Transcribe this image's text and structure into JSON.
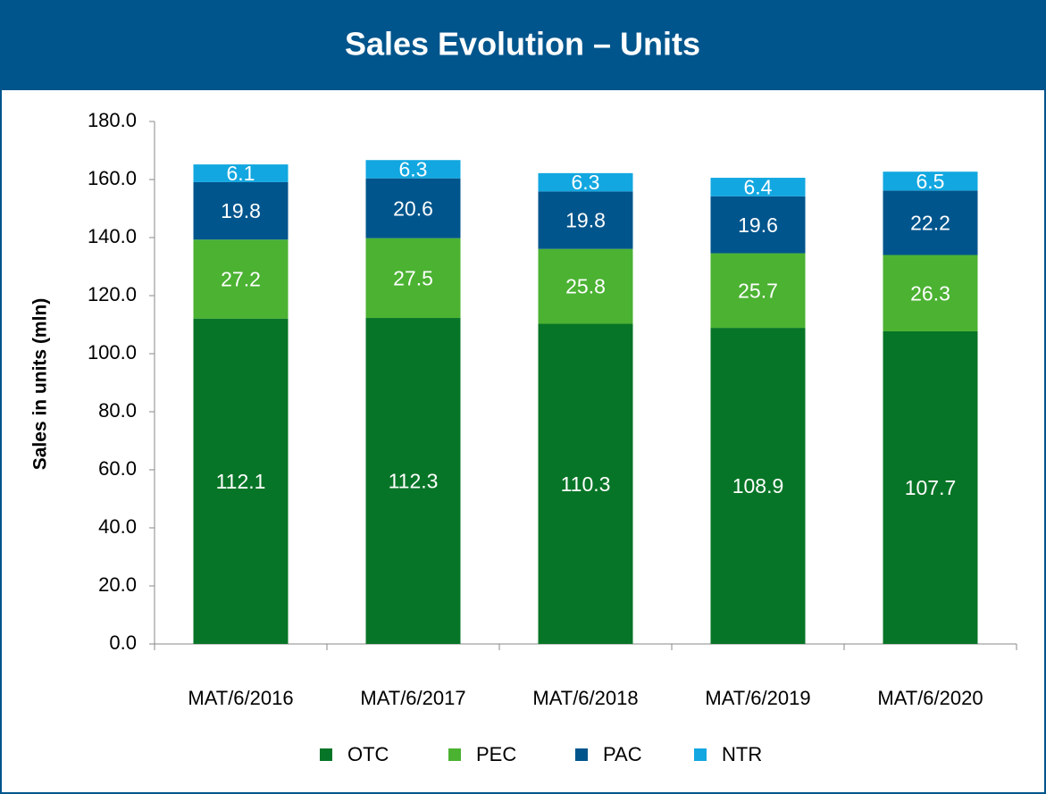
{
  "chart_data": {
    "type": "stacked_bar",
    "title": "Sales Evolution – Units",
    "y_label": "Sales in units (mln)",
    "categories": [
      "MAT/6/2016",
      "MAT/6/2017",
      "MAT/6/2018",
      "MAT/6/2019",
      "MAT/6/2020"
    ],
    "series": [
      {
        "name": "OTC",
        "color": "#077527",
        "values": [
          112.1,
          112.3,
          110.3,
          108.9,
          107.7
        ]
      },
      {
        "name": "PEC",
        "color": "#4bb232",
        "values": [
          27.2,
          27.5,
          25.8,
          25.7,
          26.3
        ]
      },
      {
        "name": "PAC",
        "color": "#00558c",
        "values": [
          19.8,
          20.6,
          19.8,
          19.6,
          22.2
        ]
      },
      {
        "name": "NTR",
        "color": "#12a7e0",
        "values": [
          6.1,
          6.3,
          6.3,
          6.4,
          6.5
        ]
      }
    ],
    "ylim": [
      0,
      180
    ],
    "yticks": [
      {
        "value": 0,
        "label": "0.0"
      },
      {
        "value": 20,
        "label": "20.0"
      },
      {
        "value": 40,
        "label": "40.0"
      },
      {
        "value": 60,
        "label": "60.0"
      },
      {
        "value": 80,
        "label": "80.0"
      },
      {
        "value": 100,
        "label": "100.0"
      },
      {
        "value": 120,
        "label": "120.0"
      },
      {
        "value": 140,
        "label": "140.0"
      },
      {
        "value": 160,
        "label": "160.0"
      },
      {
        "value": 180,
        "label": "180.0"
      }
    ],
    "legend": "bottom",
    "grid": false
  }
}
